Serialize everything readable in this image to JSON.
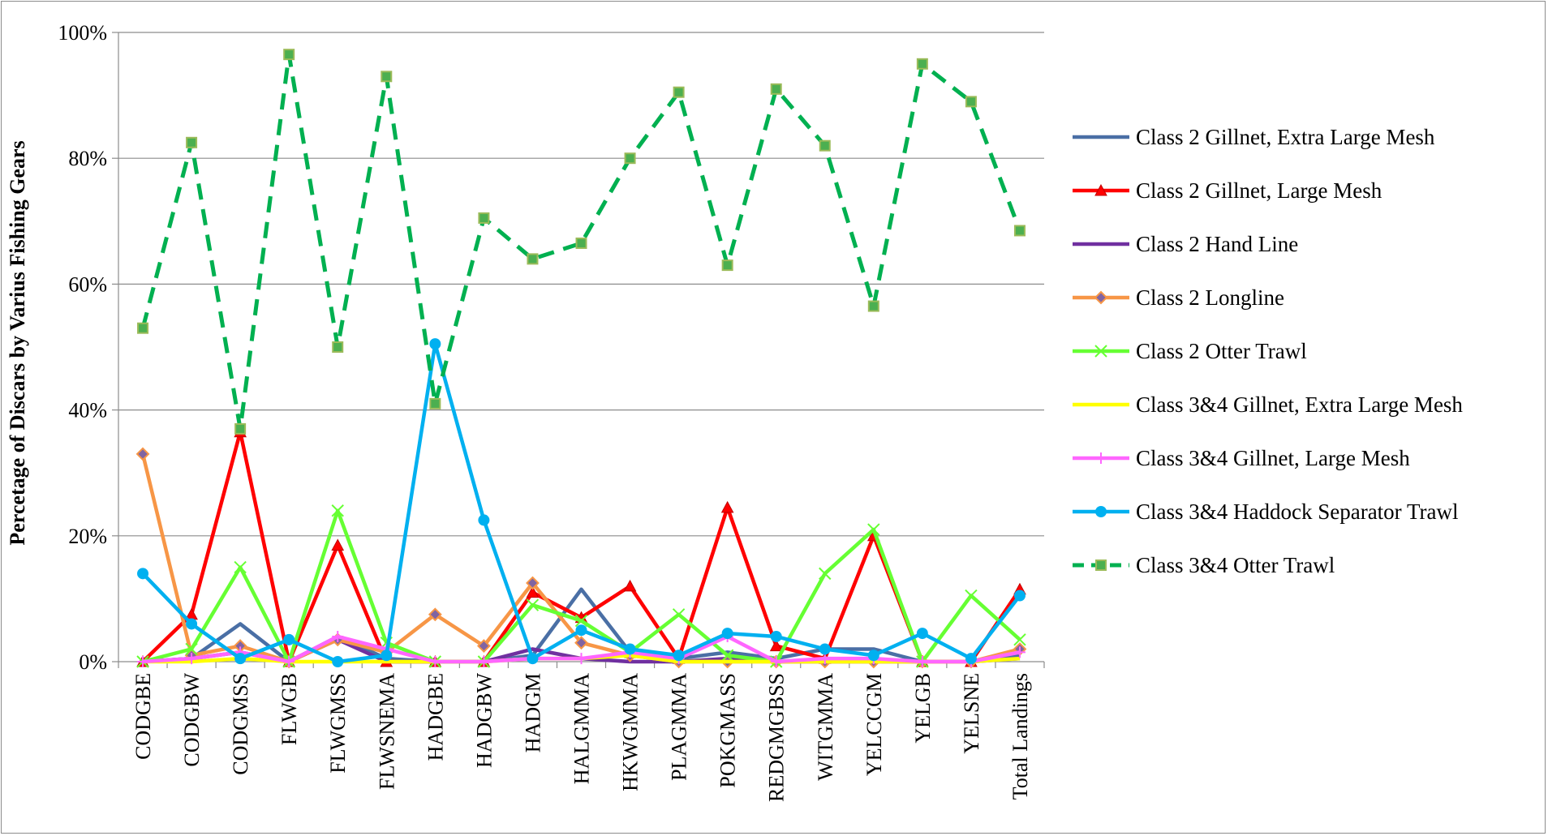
{
  "chart_data": {
    "type": "line",
    "title": "",
    "xlabel": "",
    "ylabel": "Percetage of Discars by Varius Fishing Gears",
    "ylim": [
      0,
      100
    ],
    "y_ticks": [
      "0%",
      "20%",
      "40%",
      "60%",
      "80%",
      "100%"
    ],
    "y_tick_values": [
      0,
      20,
      40,
      60,
      80,
      100
    ],
    "grid": true,
    "legend_position": "right",
    "categories": [
      "CODGBE",
      "CODGBW",
      "CODGMSS",
      "FLWGB",
      "FLWGMSS",
      "FLWSNEMA",
      "HADGBE",
      "HADGBW",
      "HADGM",
      "HALGMMA",
      "HKWGMMA",
      "PLAGMMA",
      "POKGMASS",
      "REDGMGBSS",
      "WITGMMA",
      "YELCCGM",
      "YELGB",
      "YELSNE",
      "Total Landings"
    ],
    "series": [
      {
        "name": "Class 2 Gillnet, Extra Large Mesh",
        "color": "#4a6fa5",
        "marker": "none",
        "dash": "solid",
        "values": [
          0,
          0.5,
          6,
          0,
          4,
          0.5,
          0,
          0,
          1,
          11.5,
          1.5,
          0.5,
          1.5,
          0.5,
          2,
          2,
          0,
          0,
          1
        ]
      },
      {
        "name": "Class 2 Gillnet, Large Mesh",
        "color": "#ff0000",
        "marker": "triangle",
        "dash": "solid",
        "values": [
          0,
          7.5,
          36.5,
          0,
          18.5,
          0,
          0,
          0,
          11,
          7,
          12,
          0.5,
          24.5,
          2.5,
          0.5,
          20,
          0,
          0,
          11.5
        ]
      },
      {
        "name": "Class 2 Hand Line",
        "color": "#7030a0",
        "marker": "none",
        "dash": "solid",
        "values": [
          0,
          0.5,
          1.5,
          0,
          3.5,
          0,
          0,
          0,
          2,
          0.5,
          0,
          0,
          0.5,
          0,
          0,
          0,
          0,
          0,
          0.5
        ]
      },
      {
        "name": "Class 2 Longline",
        "color": "#f79646",
        "marker": "diamond",
        "dash": "solid",
        "values": [
          33,
          1,
          2.5,
          0,
          3.5,
          1.5,
          7.5,
          2.5,
          12.5,
          3,
          1,
          0,
          0,
          0,
          0,
          0,
          0,
          0,
          2
        ]
      },
      {
        "name": "Class 2 Otter Trawl",
        "color": "#66ff33",
        "marker": "x",
        "dash": "solid",
        "values": [
          0,
          2,
          15,
          0,
          24,
          3,
          0,
          0,
          9,
          6.5,
          1.5,
          7.5,
          1,
          0,
          14,
          21,
          0,
          10.5,
          3.5
        ]
      },
      {
        "name": "Class 3&4 Gillnet, Extra Large Mesh",
        "color": "#ffff00",
        "marker": "none",
        "dash": "solid",
        "values": [
          0,
          0,
          0.5,
          0,
          0,
          0,
          0,
          0,
          0.5,
          0.5,
          1,
          0,
          0,
          0,
          0,
          0,
          0,
          0,
          0.5
        ]
      },
      {
        "name": "Class 3&4 Gillnet, Large Mesh",
        "color": "#ff66ff",
        "marker": "plus",
        "dash": "solid",
        "values": [
          0,
          0.5,
          1.5,
          0,
          4,
          2,
          0,
          0,
          0.5,
          0.5,
          1.5,
          0.5,
          4,
          0,
          0.5,
          0.5,
          0,
          0,
          1.5
        ]
      },
      {
        "name": "Class 3&4 Haddock Separator Trawl",
        "color": "#00b0f0",
        "marker": "circle",
        "dash": "solid",
        "values": [
          14,
          6,
          0.5,
          3.5,
          0,
          1,
          50.5,
          22.5,
          0.5,
          5,
          2,
          1,
          4.5,
          4,
          2,
          1,
          4.5,
          0.5,
          10.5
        ]
      },
      {
        "name": "Class 3&4 Otter Trawl",
        "color": "#00b050",
        "marker": "square",
        "dash": "dashed",
        "values": [
          53,
          82.5,
          37,
          96.5,
          50,
          93,
          41,
          70.5,
          64,
          66.5,
          80,
          90.5,
          63,
          91,
          82,
          56.5,
          95,
          89,
          68.5
        ]
      }
    ]
  }
}
